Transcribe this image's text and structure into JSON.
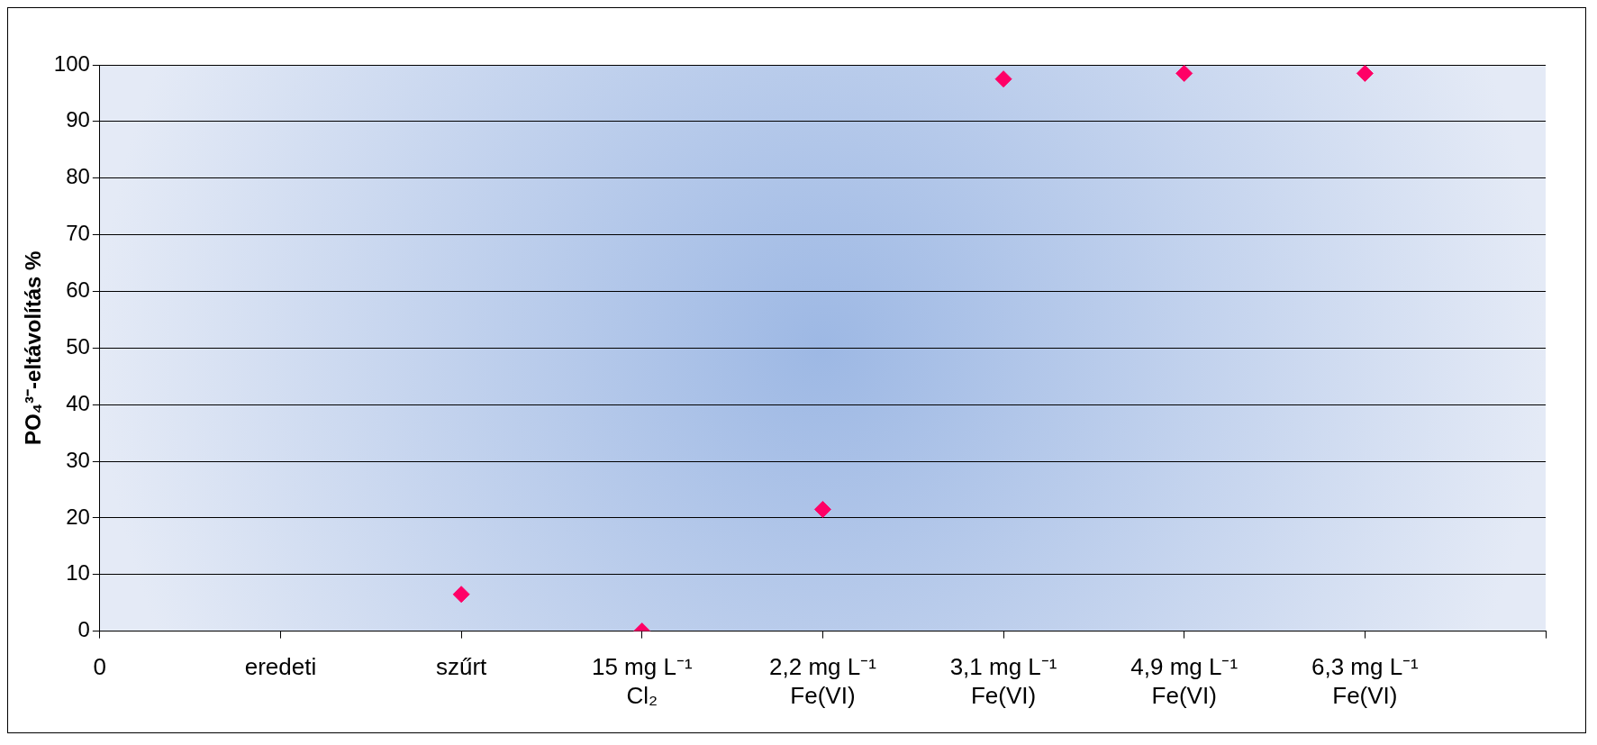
{
  "chart_data": {
    "type": "scatter",
    "ylabel": "PO₄³⁻-eltávolítás %",
    "categories": [
      "0",
      "eredeti",
      "szűrt",
      "15 mg L⁻¹ Cl₂",
      "2,2 mg L⁻¹ Fe(VI)",
      "3,1 mg L⁻¹ Fe(VI)",
      "4,9 mg L⁻¹ Fe(VI)",
      "6,3 mg L⁻¹ Fe(VI)",
      null
    ],
    "values": [
      null,
      null,
      6.5,
      0,
      21.5,
      97.5,
      98.5,
      98.5,
      null
    ],
    "color": "#ff0066",
    "marker": "diamond",
    "ylim": [
      0,
      100
    ],
    "yticks": [
      0,
      10,
      20,
      30,
      40,
      50,
      60,
      70,
      80,
      90,
      100
    ],
    "grid": "y",
    "legend": false
  }
}
